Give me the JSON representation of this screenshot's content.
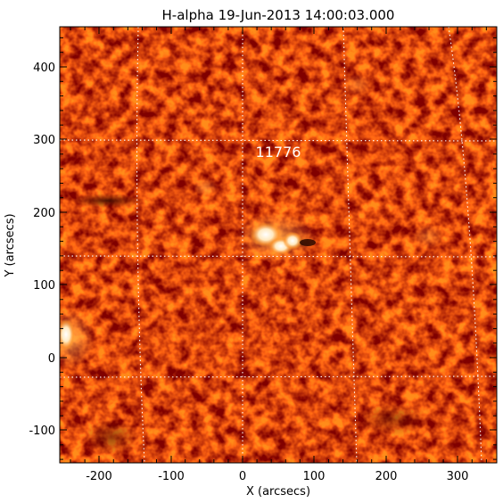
{
  "figure": {
    "title": "H-alpha 19-Jun-2013 14:00:03.000",
    "xlabel": "X (arcsecs)",
    "ylabel": "Y (arcsecs)",
    "region_label": "11776"
  },
  "axes": {
    "x_ticks": [
      "-200",
      "-100",
      "0",
      "100",
      "200",
      "300"
    ],
    "y_ticks": [
      "-100",
      "0",
      "100",
      "200",
      "300",
      "400"
    ]
  },
  "colors": {
    "background": "#ffffff",
    "solar_base": "#c43f00",
    "solar_dark": "#7e1a00",
    "solar_bright": "#ff9a30",
    "plage_white": "#fff8e8",
    "grid": "#ffffff",
    "axis": "#000000"
  }
}
